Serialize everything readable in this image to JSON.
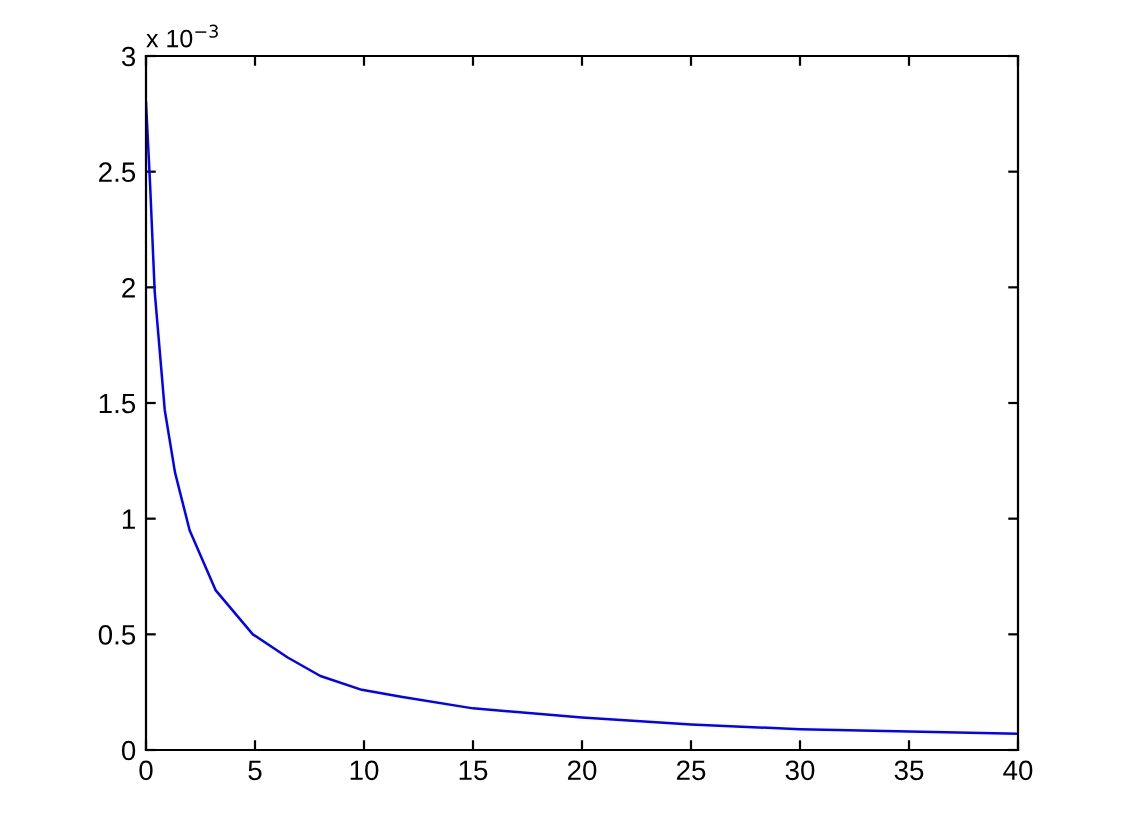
{
  "chart_data": {
    "type": "line",
    "x": [
      0,
      0.19,
      0.4,
      0.86,
      1.33,
      2.0,
      3.2,
      4.9,
      6.5,
      8.0,
      9.9,
      11.7,
      15,
      20,
      25,
      30,
      35,
      40
    ],
    "series": [
      {
        "color": "#0000ff",
        "values": [
          2.8,
          2.44,
          1.98,
          1.47,
          1.2,
          0.95,
          0.69,
          0.5,
          0.4,
          0.32,
          0.26,
          0.23,
          0.18,
          0.14,
          0.11,
          0.09,
          0.08,
          0.07
        ]
      }
    ],
    "xlim": [
      0,
      40
    ],
    "xticks": [
      0,
      5,
      10,
      15,
      20,
      25,
      30,
      35,
      40
    ],
    "ylim": [
      0,
      3
    ],
    "yticks": [
      0,
      0.5,
      1,
      1.5,
      2,
      2.5,
      3
    ],
    "annotations": [
      "x 10$^{−3}$"
    ],
    "grid": false,
    "legend": false
  }
}
